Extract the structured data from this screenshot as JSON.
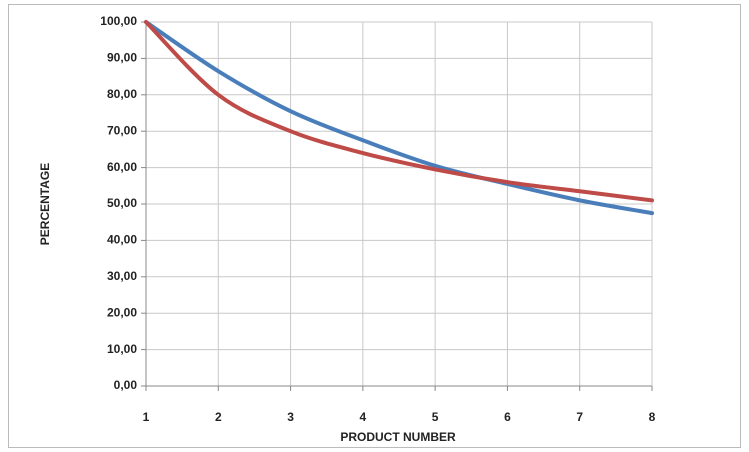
{
  "chart_data": {
    "type": "line",
    "x_label": "PRODUCT NUMBER",
    "y_label": "PERCENTAGE",
    "x": [
      1,
      2,
      3,
      4,
      5,
      6,
      7,
      8
    ],
    "series": [
      {
        "color": "#4a7ebb",
        "values": [
          100,
          86.5,
          75.5,
          67.5,
          60.5,
          55.5,
          51,
          47.5
        ]
      },
      {
        "color": "#be4b48",
        "values": [
          100,
          80,
          70,
          64,
          59.5,
          56,
          53.5,
          51
        ]
      }
    ],
    "xlim": [
      1,
      8
    ],
    "xticks": [
      1,
      2,
      3,
      4,
      5,
      6,
      7,
      8
    ],
    "ylim": [
      0,
      100
    ],
    "yticks": [
      {
        "value": 0,
        "label": "0,00"
      },
      {
        "value": 10,
        "label": "10,00"
      },
      {
        "value": 20,
        "label": "20,00"
      },
      {
        "value": 30,
        "label": "30,00"
      },
      {
        "value": 40,
        "label": "40,00"
      },
      {
        "value": 50,
        "label": "50,00"
      },
      {
        "value": 60,
        "label": "60,00"
      },
      {
        "value": 70,
        "label": "70,00"
      },
      {
        "value": 80,
        "label": "80,00"
      },
      {
        "value": 90,
        "label": "90,00"
      },
      {
        "value": 100,
        "label": "100,00"
      }
    ],
    "grid": true
  }
}
